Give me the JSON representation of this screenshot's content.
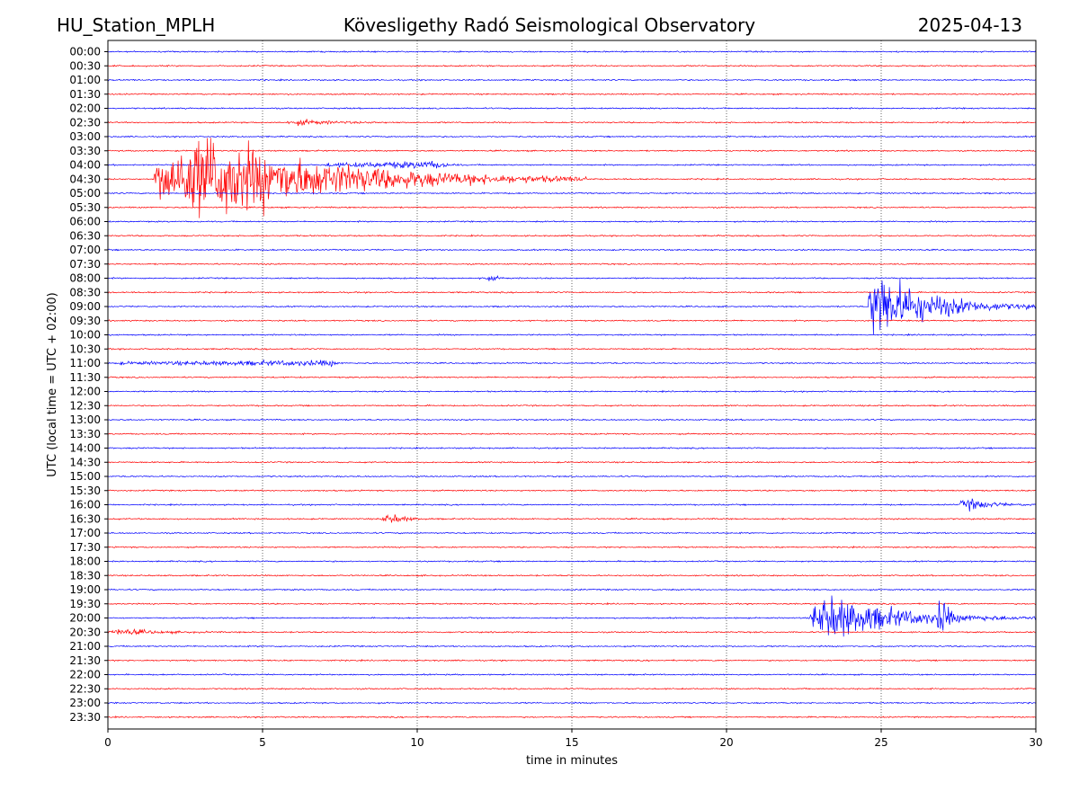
{
  "header": {
    "station": "HU_Station_MPLH",
    "observatory": "Kövesligethy Radó Seismological Observatory",
    "date": "2025-04-13"
  },
  "colors": {
    "trace_even": "#0000ff",
    "trace_odd": "#ff0000",
    "background": "#ffffff",
    "axes": "#000000"
  },
  "chart_data": {
    "type": "line",
    "title": "Kövesligethy Radó Seismological Observatory",
    "xlabel": "time in minutes",
    "ylabel": "UTC (local time = UTC + 02:00)",
    "xlim": [
      0,
      30
    ],
    "xticks": [
      0,
      5,
      10,
      15,
      20,
      25,
      30
    ],
    "grid": "vertical dotted lines at x ticks",
    "rows": [
      "00:00",
      "00:30",
      "01:00",
      "01:30",
      "02:00",
      "02:30",
      "03:00",
      "03:30",
      "04:00",
      "04:30",
      "05:00",
      "05:30",
      "06:00",
      "06:30",
      "07:00",
      "07:30",
      "08:00",
      "08:30",
      "09:00",
      "09:30",
      "10:00",
      "10:30",
      "11:00",
      "11:30",
      "12:00",
      "12:30",
      "13:00",
      "13:30",
      "14:00",
      "14:30",
      "15:00",
      "15:30",
      "16:00",
      "16:30",
      "17:00",
      "17:30",
      "18:00",
      "18:30",
      "19:00",
      "19:30",
      "20:00",
      "20:30",
      "21:00",
      "21:30",
      "22:00",
      "22:30",
      "23:00",
      "23:30"
    ],
    "row_colors": [
      "blue",
      "red"
    ],
    "events": [
      {
        "row": "04:30",
        "start_min": 1.5,
        "peak_min": 3.2,
        "end_min": 15.5,
        "peak_amp": 9.5,
        "type": "earthquake",
        "color": "red"
      },
      {
        "row": "02:30",
        "start_min": 5.8,
        "peak_min": 6.3,
        "end_min": 9.5,
        "peak_amp": 0.5,
        "color": "red"
      },
      {
        "row": "04:00",
        "start_min": 7.0,
        "peak_min": 10.7,
        "end_min": 11.5,
        "peak_amp": 0.7,
        "color": "blue"
      },
      {
        "row": "09:00",
        "start_min": 24.6,
        "peak_min": 24.8,
        "end_min": 30,
        "peak_amp": 8.0,
        "type": "earthquake",
        "color": "blue"
      },
      {
        "row": "16:00",
        "start_min": 27.5,
        "peak_min": 27.9,
        "end_min": 30,
        "peak_amp": 1.2,
        "color": "blue"
      },
      {
        "row": "16:30",
        "start_min": 8.8,
        "peak_min": 9.2,
        "end_min": 10.5,
        "peak_amp": 1.0,
        "color": "red"
      },
      {
        "row": "20:00",
        "start_min": 22.7,
        "peak_min": 23.3,
        "end_min": 30,
        "peak_amp": 5.0,
        "type": "earthquake",
        "color": "blue"
      },
      {
        "row": "20:00",
        "start_min": 26.8,
        "peak_min": 27.0,
        "end_min": 27.5,
        "peak_amp": 4.0,
        "color": "blue"
      },
      {
        "row": "20:30",
        "start_min": 0.0,
        "peak_min": 0.5,
        "end_min": 3.7,
        "peak_amp": 0.6,
        "color": "red"
      },
      {
        "row": "11:00",
        "start_min": 0.2,
        "peak_min": 7.3,
        "end_min": 7.6,
        "peak_amp": 0.5,
        "color": "blue"
      },
      {
        "row": "08:00",
        "start_min": 12.0,
        "peak_min": 12.5,
        "end_min": 13.0,
        "peak_amp": 0.4,
        "color": "blue"
      }
    ]
  }
}
